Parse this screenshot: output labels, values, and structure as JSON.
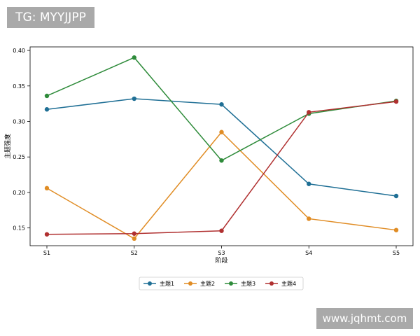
{
  "watermarks": {
    "top_left": "TG: MYYJJPP",
    "bottom_right": "www.jqhmt.com"
  },
  "chart_data": {
    "type": "line",
    "title": "",
    "xlabel": "阶段",
    "ylabel": "主题强度",
    "categories": [
      "S1",
      "S2",
      "S3",
      "S4",
      "S5"
    ],
    "ylim": [
      0.125,
      0.405
    ],
    "yticks": [
      "0.15",
      "0.20",
      "0.25",
      "0.30",
      "0.35",
      "0.40"
    ],
    "grid": false,
    "legend_position": "bottom-center",
    "series": [
      {
        "name": "主题1",
        "color": "#1f6f95",
        "values": [
          0.317,
          0.332,
          0.324,
          0.212,
          0.195
        ]
      },
      {
        "name": "主题2",
        "color": "#e08c24",
        "values": [
          0.206,
          0.135,
          0.285,
          0.163,
          0.147
        ]
      },
      {
        "name": "主题3",
        "color": "#2e8b3a",
        "values": [
          0.336,
          0.39,
          0.245,
          0.311,
          0.329
        ]
      },
      {
        "name": "主题4",
        "color": "#b03030",
        "values": [
          0.141,
          0.142,
          0.146,
          0.313,
          0.328
        ]
      }
    ]
  }
}
